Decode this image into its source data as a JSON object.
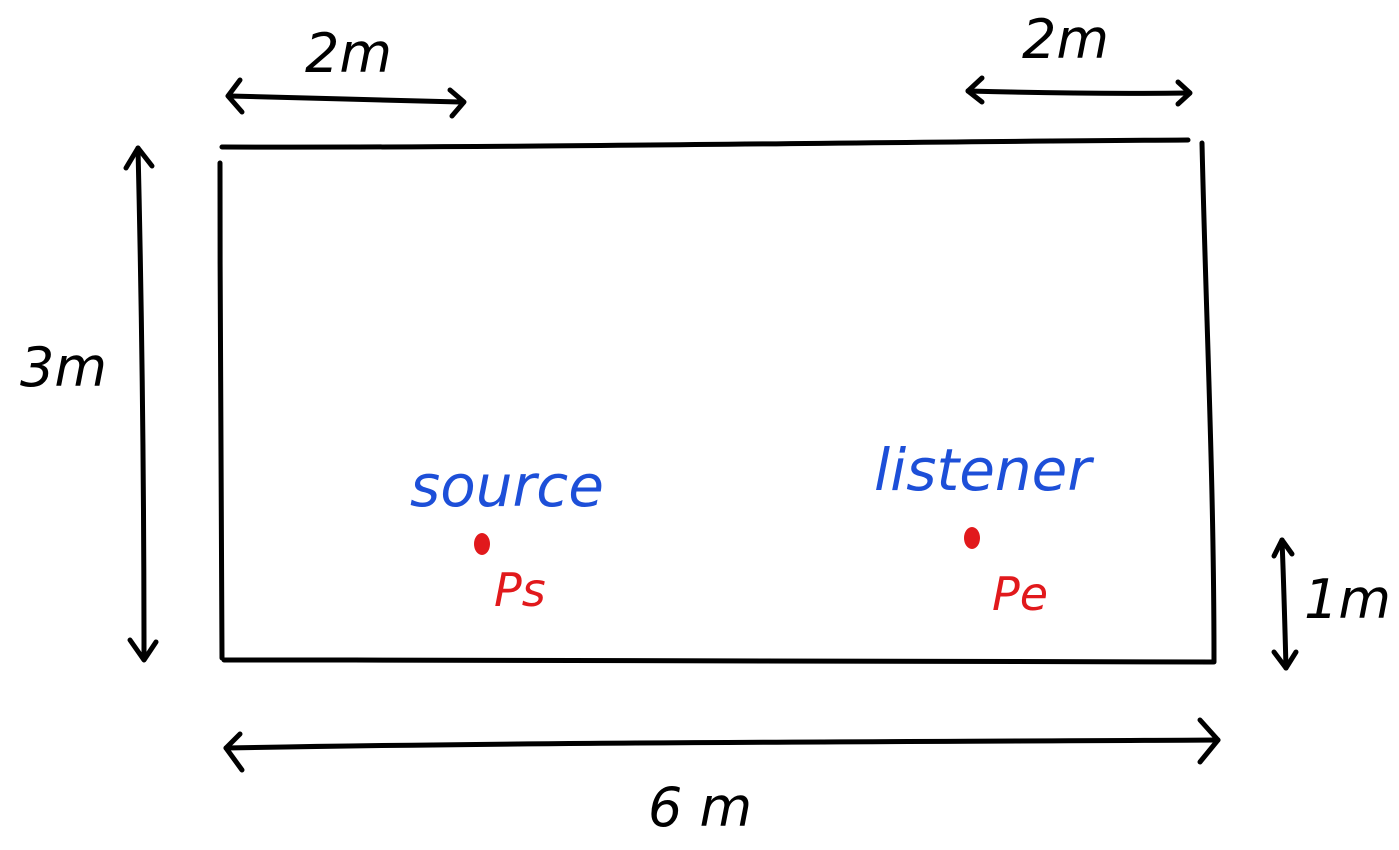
{
  "dimensions": {
    "top_left": "2m",
    "top_right": "2m",
    "left_height": "3m",
    "bottom_width": "6 m",
    "right_height": "1m"
  },
  "source": {
    "name": "source",
    "point_label": "Ps"
  },
  "listener": {
    "name": "listener",
    "point_label": "Pe"
  },
  "colors": {
    "ink": "#000000",
    "label_blue": "#1d4fd8",
    "point_red": "#e1191c"
  }
}
